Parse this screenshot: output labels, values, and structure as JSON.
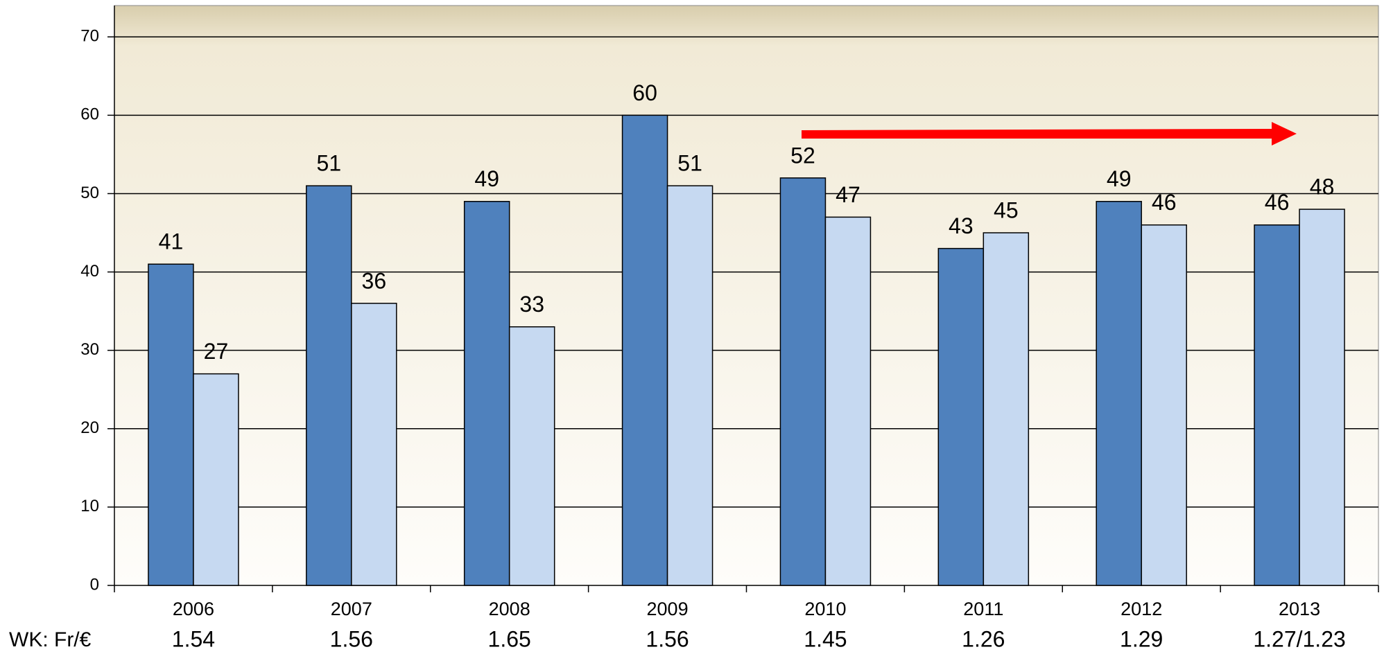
{
  "chart_data": {
    "type": "bar",
    "categories": [
      "2006",
      "2007",
      "2008",
      "2009",
      "2010",
      "2011",
      "2012",
      "2013"
    ],
    "series": [
      {
        "color": "#4f81bd",
        "values": [
          41,
          51,
          49,
          60,
          52,
          43,
          49,
          46
        ]
      },
      {
        "color": "#c6d9f1",
        "values": [
          27,
          36,
          33,
          51,
          47,
          45,
          46,
          48
        ]
      }
    ],
    "ylim": [
      0,
      74
    ],
    "yticks": [
      0,
      10,
      20,
      30,
      40,
      50,
      60,
      70
    ],
    "grid": true,
    "exchange_rate_label": "WK: Fr/€",
    "exchange_rates": [
      1.54,
      1.56,
      1.65,
      1.56,
      1.45,
      1.26,
      1.29,
      "1.27/1.23"
    ]
  }
}
